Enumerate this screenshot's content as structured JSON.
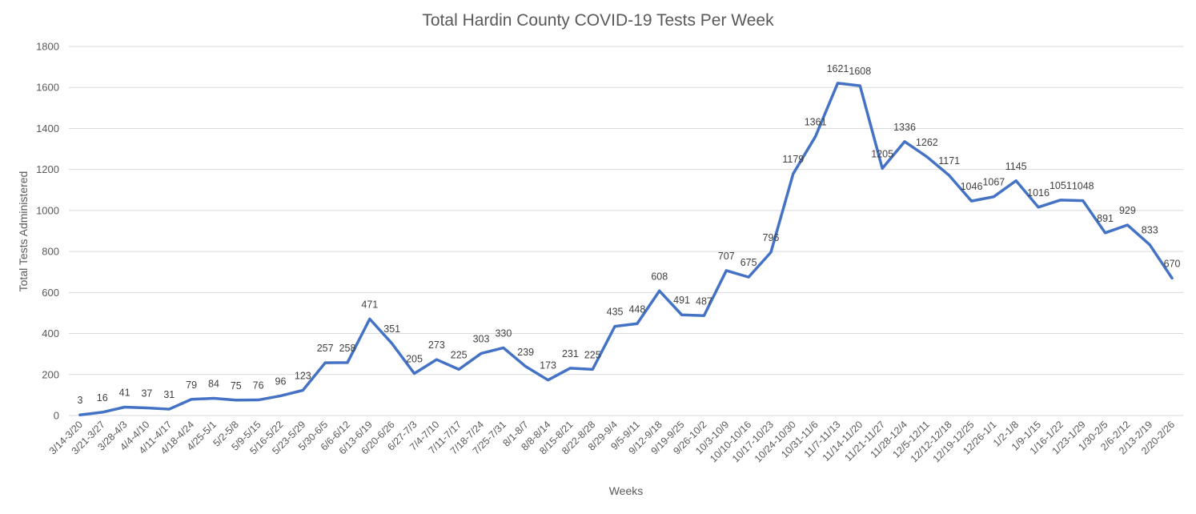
{
  "chart_data": {
    "type": "line",
    "title": "Total Hardin County COVID-19 Tests Per Week",
    "xlabel": "Weeks",
    "ylabel": "Total Tests Administered",
    "ylim": [
      0,
      1800
    ],
    "yticks": [
      0,
      200,
      400,
      600,
      800,
      1000,
      1200,
      1400,
      1600,
      1800
    ],
    "grid": true,
    "legend": "none",
    "line_color": "#4472c4",
    "categories": [
      "3/14-3/20",
      "3/21-3/27",
      "3/28-4/3",
      "4/4-4/10",
      "4/11-4/17",
      "4/18-4/24",
      "4/25-5/1",
      "5/2-5/8",
      "5/9-5/15",
      "5/16-5/22",
      "5/23-5/29",
      "5/30-6/5",
      "6/6-6/12",
      "6/13-6/19",
      "6/20-6/26",
      "6/27-7/3",
      "7/4-7/10",
      "7/11-7/17",
      "7/18-7/24",
      "7/25-7/31",
      "8/1-8/7",
      "8/8-8/14",
      "8/15-8/21",
      "8/22-8/28",
      "8/29-9/4",
      "9/5-9/11",
      "9/12-9/18",
      "9/19-9/25",
      "9/26-10/2",
      "10/3-10/9",
      "10/10-10/16",
      "10/17-10/23",
      "10/24-10/30",
      "10/31-11/6",
      "11/7-11/13",
      "11/14-11/20",
      "11/21-11/27",
      "11/28-12/4",
      "12/5-12/11",
      "12/12-12/18",
      "12/19-12/25",
      "12/26-1/1",
      "1/2-1/8",
      "1/9-1/15",
      "1/16-1/22",
      "1/23-1/29",
      "1/30-2/5",
      "2/6-2/12",
      "2/13-2/19",
      "2/20-2/26"
    ],
    "values": [
      3,
      16,
      41,
      37,
      31,
      79,
      84,
      75,
      76,
      96,
      123,
      257,
      258,
      471,
      351,
      205,
      273,
      225,
      303,
      330,
      239,
      173,
      231,
      225,
      435,
      448,
      608,
      491,
      487,
      707,
      675,
      796,
      1179,
      1361,
      1621,
      1608,
      1205,
      1336,
      1262,
      1171,
      1046,
      1067,
      1145,
      1016,
      1051,
      1048,
      891,
      929,
      833,
      670
    ]
  }
}
